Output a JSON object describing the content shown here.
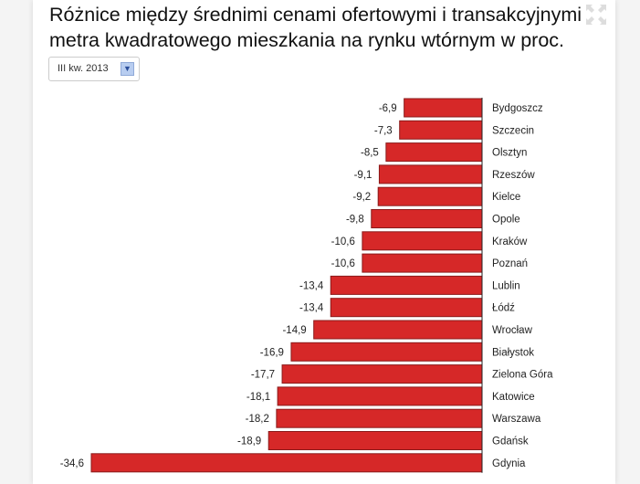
{
  "header": {
    "title_line1": "Różnice między średnimi cenami ofertowymi i transakcyjnymi",
    "title_line2": "metra kwadratowego mieszkania na rynku wtórnym w proc."
  },
  "period_select": {
    "value": "III kw. 2013"
  },
  "icons": {
    "expand": "expand-icon",
    "dropdown": "chevron-down-icon"
  },
  "chart_data": {
    "type": "bar",
    "orientation": "horizontal",
    "categories": [
      "Bydgoszcz",
      "Szczecin",
      "Olsztyn",
      "Rzeszów",
      "Kielce",
      "Opole",
      "Kraków",
      "Poznań",
      "Lublin",
      "Łódź",
      "Wrocław",
      "Białystok",
      "Zielona Góra",
      "Katowice",
      "Warszawa",
      "Gdańsk",
      "Gdynia"
    ],
    "values": [
      -6.9,
      -7.3,
      -8.5,
      -9.1,
      -9.2,
      -9.8,
      -10.6,
      -10.6,
      -13.4,
      -13.4,
      -14.9,
      -16.9,
      -17.7,
      -18.1,
      -18.2,
      -18.9,
      -34.6
    ],
    "value_labels": [
      "-6,9",
      "-7,3",
      "-8,5",
      "-9,1",
      "-9,2",
      "-9,8",
      "-10,6",
      "-10,6",
      "-13,4",
      "-13,4",
      "-14,9",
      "-16,9",
      "-17,7",
      "-18,1",
      "-18,2",
      "-18,9",
      "-34,6"
    ],
    "bar_color": "#d62828",
    "xlim": [
      -34.6,
      0
    ],
    "grid": false
  }
}
